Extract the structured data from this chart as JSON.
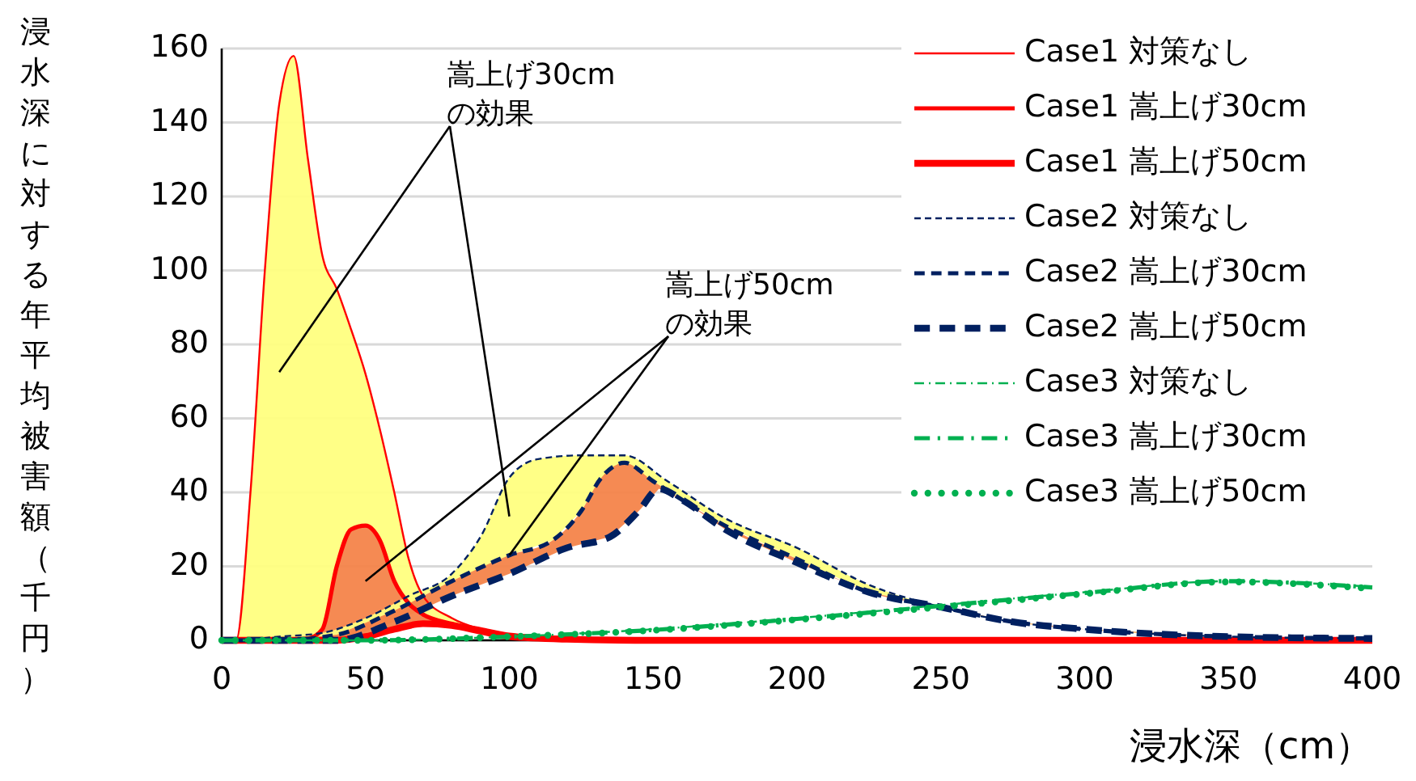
{
  "chart_data": {
    "type": "line",
    "xlabel": "浸水深（cm）",
    "ylabel": "浸水深に対する年平均被害額（千円）",
    "xlim": [
      0,
      400
    ],
    "xticks": [
      0,
      50,
      100,
      150,
      200,
      250,
      300,
      350,
      400
    ],
    "ylim": [
      0,
      160
    ],
    "yticks": [
      0,
      20,
      40,
      60,
      80,
      100,
      120,
      140,
      160
    ],
    "grid": "y",
    "legend": "top right",
    "annotations": [
      "嵩上げ30cm\nの効果",
      {
        "text": "嵩上げ50cm\nの効果",
        "x": 100,
        "y": 23
      }
    ],
    "series": [
      {
        "name": "Case1 対策なし",
        "color": "#ff0000",
        "line_style": "solid",
        "x": [
          0,
          5,
          10,
          15,
          20,
          25,
          30,
          35,
          40,
          45,
          50,
          55,
          60,
          65,
          70,
          80,
          90,
          100,
          120,
          150,
          200,
          300,
          400
        ],
        "values": [
          0,
          0,
          40,
          100,
          145,
          158,
          130,
          104,
          95,
          84,
          72,
          57,
          40,
          22,
          12,
          6,
          3,
          1.5,
          0.5,
          0,
          0,
          0,
          0
        ]
      },
      {
        "name": "Case1 嵩上げ30cm",
        "color": "#ff0000",
        "line_style": "solid",
        "x": [
          0,
          20,
          30,
          35,
          40,
          45,
          50,
          55,
          60,
          65,
          70,
          80,
          90,
          100,
          120,
          150,
          200,
          300,
          400
        ],
        "values": [
          0,
          0,
          0.5,
          3,
          20,
          30,
          31,
          27,
          16,
          10,
          7,
          4.5,
          3,
          1.5,
          0.5,
          0,
          0,
          0,
          0
        ]
      },
      {
        "name": "Case1 嵩上げ50cm",
        "color": "#ff0000",
        "line_style": "solid",
        "x": [
          0,
          40,
          50,
          60,
          70,
          80,
          90,
          100,
          120,
          150,
          200,
          300,
          400
        ],
        "values": [
          0,
          0,
          1,
          3,
          4.5,
          4,
          2.5,
          1,
          0.3,
          0,
          0,
          0,
          0
        ]
      },
      {
        "name": "Case2 対策なし",
        "color": "#002060",
        "line_style": "dashed",
        "x": [
          0,
          5,
          20,
          35,
          50,
          65,
          80,
          90,
          100,
          110,
          125,
          140,
          155,
          175,
          200,
          225,
          250,
          275,
          300,
          350,
          400
        ],
        "values": [
          0,
          0,
          1,
          2,
          6,
          12,
          18,
          28,
          44,
          49,
          50,
          50,
          43,
          33,
          25,
          15,
          9,
          5,
          3,
          1,
          0.5
        ]
      },
      {
        "name": "Case2 嵩上げ30cm",
        "color": "#002060",
        "line_style": "dashed",
        "x": [
          0,
          20,
          40,
          60,
          80,
          100,
          115,
          125,
          132,
          140,
          150,
          175,
          200,
          225,
          250,
          275,
          300,
          350,
          400
        ],
        "values": [
          0,
          0,
          1.5,
          8,
          16,
          23,
          27,
          35,
          44,
          48,
          43,
          31,
          22,
          13,
          9,
          5,
          3,
          1,
          0.5
        ]
      },
      {
        "name": "Case2 嵩上げ50cm",
        "color": "#002060",
        "line_style": "dashed",
        "x": [
          0,
          40,
          60,
          80,
          100,
          120,
          135,
          145,
          152,
          160,
          175,
          200,
          225,
          250,
          275,
          300,
          350,
          400
        ],
        "values": [
          0,
          0,
          5,
          12,
          18,
          25,
          28,
          35,
          41,
          38,
          30,
          21,
          13,
          9,
          5,
          3,
          1,
          0.5
        ]
      },
      {
        "name": "Case3 対策なし",
        "color": "#00b050",
        "line_style": "dashdot",
        "x": [
          0,
          50,
          100,
          150,
          200,
          250,
          300,
          350,
          400
        ],
        "values": [
          0,
          0,
          1,
          3,
          6,
          9.5,
          13,
          16,
          14.5
        ]
      },
      {
        "name": "Case3 嵩上げ30cm",
        "color": "#00b050",
        "line_style": "dashdot",
        "x": [
          0,
          50,
          100,
          150,
          200,
          250,
          300,
          350,
          400
        ],
        "values": [
          0,
          0,
          1,
          2.8,
          5.8,
          9.3,
          12.8,
          16,
          14.3
        ]
      },
      {
        "name": "Case3 嵩上げ50cm",
        "color": "#00b050",
        "line_style": "dotted",
        "x": [
          0,
          50,
          100,
          150,
          200,
          250,
          300,
          350,
          400
        ],
        "values": [
          0,
          0,
          1,
          2.7,
          5.6,
          9,
          12.6,
          15.8,
          14
        ]
      }
    ]
  }
}
